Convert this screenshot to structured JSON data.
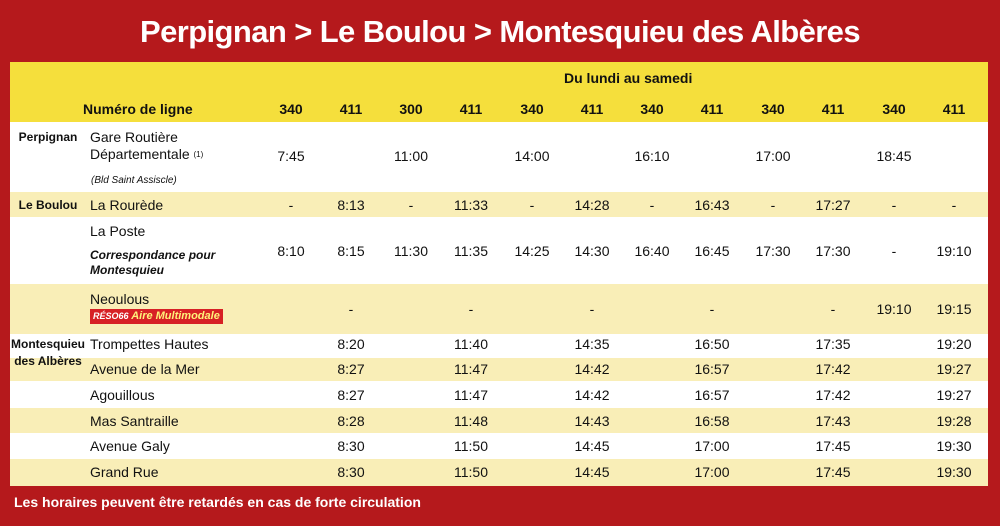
{
  "title": "Perpignan > Le Boulou > Montesquieu des Albères",
  "days_label": "Du lundi au samedi",
  "line_label": "Numéro de ligne",
  "lines": [
    "340",
    "411",
    "300",
    "411",
    "340",
    "411",
    "340",
    "411",
    "340",
    "411",
    "340",
    "411"
  ],
  "groups": {
    "perpignan": "Perpignan",
    "le_boulou": "Le Boulou",
    "montesquieu": "Montesquieu des Albères"
  },
  "stops": {
    "gare_line1": "Gare Routière",
    "gare_line2": "Départementale",
    "gare_sup": "(1)",
    "gare_note": "(Bld Saint Assiscle)",
    "rourede": "La Rourède",
    "poste": "La Poste",
    "poste_note": "Correspondance pour Montesquieu",
    "neoulous": "Neoulous",
    "reso_brand": "RÉSO66",
    "reso_label": "Aire Multimodale",
    "trompettes": "Trompettes Hautes",
    "avenue_mer": "Avenue de la Mer",
    "agouillous": "Agouillous",
    "mas_santraille": "Mas Santraille",
    "avenue_galy": "Avenue Galy",
    "grand_rue": "Grand Rue"
  },
  "times": {
    "gare": [
      "7:45",
      "",
      "11:00",
      "",
      "14:00",
      "",
      "16:10",
      "",
      "17:00",
      "",
      "18:45",
      ""
    ],
    "rourede": [
      "-",
      "8:13",
      "-",
      "11:33",
      "-",
      "14:28",
      "-",
      "16:43",
      "-",
      "17:27",
      "-",
      "-"
    ],
    "poste": [
      "8:10",
      "8:15",
      "11:30",
      "11:35",
      "14:25",
      "14:30",
      "16:40",
      "16:45",
      "17:30",
      "17:30",
      "-",
      "19:10"
    ],
    "neoulous": [
      "",
      "-",
      "",
      "-",
      "",
      "-",
      "",
      "-",
      "",
      "-",
      "19:10",
      "19:15"
    ],
    "trompettes": [
      "",
      "8:20",
      "",
      "11:40",
      "",
      "14:35",
      "",
      "16:50",
      "",
      "17:35",
      "",
      "19:20"
    ],
    "avenue_mer": [
      "",
      "8:27",
      "",
      "11:47",
      "",
      "14:42",
      "",
      "16:57",
      "",
      "17:42",
      "",
      "19:27"
    ],
    "agouillous": [
      "",
      "8:27",
      "",
      "11:47",
      "",
      "14:42",
      "",
      "16:57",
      "",
      "17:42",
      "",
      "19:27"
    ],
    "mas_santraille": [
      "",
      "8:28",
      "",
      "11:48",
      "",
      "14:43",
      "",
      "16:58",
      "",
      "17:43",
      "",
      "19:28"
    ],
    "avenue_galy": [
      "",
      "8:30",
      "",
      "11:50",
      "",
      "14:45",
      "",
      "17:00",
      "",
      "17:45",
      "",
      "19:30"
    ],
    "grand_rue": [
      "",
      "8:30",
      "",
      "11:50",
      "",
      "14:45",
      "",
      "17:00",
      "",
      "17:45",
      "",
      "19:30"
    ]
  },
  "footer": "Les horaires peuvent être retardés en cas de forte circulation",
  "colors": {
    "background": "#b5191c",
    "header": "#f5df3c",
    "stripe": "#f9eeb7"
  }
}
